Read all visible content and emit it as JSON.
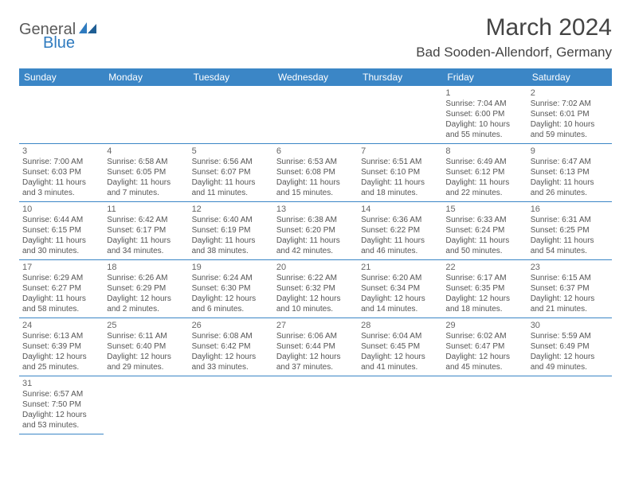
{
  "logo": {
    "general": "General",
    "blue": "Blue"
  },
  "title": "March 2024",
  "location": "Bad Sooden-Allendorf, Germany",
  "colors": {
    "header_bg": "#3b86c6",
    "header_fg": "#ffffff",
    "border": "#3b86c6",
    "logo_blue": "#2f7bbf"
  },
  "weekdays": [
    "Sunday",
    "Monday",
    "Tuesday",
    "Wednesday",
    "Thursday",
    "Friday",
    "Saturday"
  ],
  "weeks": [
    [
      null,
      null,
      null,
      null,
      null,
      {
        "n": "1",
        "sunrise": "Sunrise: 7:04 AM",
        "sunset": "Sunset: 6:00 PM",
        "daylight": "Daylight: 10 hours and 55 minutes."
      },
      {
        "n": "2",
        "sunrise": "Sunrise: 7:02 AM",
        "sunset": "Sunset: 6:01 PM",
        "daylight": "Daylight: 10 hours and 59 minutes."
      }
    ],
    [
      {
        "n": "3",
        "sunrise": "Sunrise: 7:00 AM",
        "sunset": "Sunset: 6:03 PM",
        "daylight": "Daylight: 11 hours and 3 minutes."
      },
      {
        "n": "4",
        "sunrise": "Sunrise: 6:58 AM",
        "sunset": "Sunset: 6:05 PM",
        "daylight": "Daylight: 11 hours and 7 minutes."
      },
      {
        "n": "5",
        "sunrise": "Sunrise: 6:56 AM",
        "sunset": "Sunset: 6:07 PM",
        "daylight": "Daylight: 11 hours and 11 minutes."
      },
      {
        "n": "6",
        "sunrise": "Sunrise: 6:53 AM",
        "sunset": "Sunset: 6:08 PM",
        "daylight": "Daylight: 11 hours and 15 minutes."
      },
      {
        "n": "7",
        "sunrise": "Sunrise: 6:51 AM",
        "sunset": "Sunset: 6:10 PM",
        "daylight": "Daylight: 11 hours and 18 minutes."
      },
      {
        "n": "8",
        "sunrise": "Sunrise: 6:49 AM",
        "sunset": "Sunset: 6:12 PM",
        "daylight": "Daylight: 11 hours and 22 minutes."
      },
      {
        "n": "9",
        "sunrise": "Sunrise: 6:47 AM",
        "sunset": "Sunset: 6:13 PM",
        "daylight": "Daylight: 11 hours and 26 minutes."
      }
    ],
    [
      {
        "n": "10",
        "sunrise": "Sunrise: 6:44 AM",
        "sunset": "Sunset: 6:15 PM",
        "daylight": "Daylight: 11 hours and 30 minutes."
      },
      {
        "n": "11",
        "sunrise": "Sunrise: 6:42 AM",
        "sunset": "Sunset: 6:17 PM",
        "daylight": "Daylight: 11 hours and 34 minutes."
      },
      {
        "n": "12",
        "sunrise": "Sunrise: 6:40 AM",
        "sunset": "Sunset: 6:19 PM",
        "daylight": "Daylight: 11 hours and 38 minutes."
      },
      {
        "n": "13",
        "sunrise": "Sunrise: 6:38 AM",
        "sunset": "Sunset: 6:20 PM",
        "daylight": "Daylight: 11 hours and 42 minutes."
      },
      {
        "n": "14",
        "sunrise": "Sunrise: 6:36 AM",
        "sunset": "Sunset: 6:22 PM",
        "daylight": "Daylight: 11 hours and 46 minutes."
      },
      {
        "n": "15",
        "sunrise": "Sunrise: 6:33 AM",
        "sunset": "Sunset: 6:24 PM",
        "daylight": "Daylight: 11 hours and 50 minutes."
      },
      {
        "n": "16",
        "sunrise": "Sunrise: 6:31 AM",
        "sunset": "Sunset: 6:25 PM",
        "daylight": "Daylight: 11 hours and 54 minutes."
      }
    ],
    [
      {
        "n": "17",
        "sunrise": "Sunrise: 6:29 AM",
        "sunset": "Sunset: 6:27 PM",
        "daylight": "Daylight: 11 hours and 58 minutes."
      },
      {
        "n": "18",
        "sunrise": "Sunrise: 6:26 AM",
        "sunset": "Sunset: 6:29 PM",
        "daylight": "Daylight: 12 hours and 2 minutes."
      },
      {
        "n": "19",
        "sunrise": "Sunrise: 6:24 AM",
        "sunset": "Sunset: 6:30 PM",
        "daylight": "Daylight: 12 hours and 6 minutes."
      },
      {
        "n": "20",
        "sunrise": "Sunrise: 6:22 AM",
        "sunset": "Sunset: 6:32 PM",
        "daylight": "Daylight: 12 hours and 10 minutes."
      },
      {
        "n": "21",
        "sunrise": "Sunrise: 6:20 AM",
        "sunset": "Sunset: 6:34 PM",
        "daylight": "Daylight: 12 hours and 14 minutes."
      },
      {
        "n": "22",
        "sunrise": "Sunrise: 6:17 AM",
        "sunset": "Sunset: 6:35 PM",
        "daylight": "Daylight: 12 hours and 18 minutes."
      },
      {
        "n": "23",
        "sunrise": "Sunrise: 6:15 AM",
        "sunset": "Sunset: 6:37 PM",
        "daylight": "Daylight: 12 hours and 21 minutes."
      }
    ],
    [
      {
        "n": "24",
        "sunrise": "Sunrise: 6:13 AM",
        "sunset": "Sunset: 6:39 PM",
        "daylight": "Daylight: 12 hours and 25 minutes."
      },
      {
        "n": "25",
        "sunrise": "Sunrise: 6:11 AM",
        "sunset": "Sunset: 6:40 PM",
        "daylight": "Daylight: 12 hours and 29 minutes."
      },
      {
        "n": "26",
        "sunrise": "Sunrise: 6:08 AM",
        "sunset": "Sunset: 6:42 PM",
        "daylight": "Daylight: 12 hours and 33 minutes."
      },
      {
        "n": "27",
        "sunrise": "Sunrise: 6:06 AM",
        "sunset": "Sunset: 6:44 PM",
        "daylight": "Daylight: 12 hours and 37 minutes."
      },
      {
        "n": "28",
        "sunrise": "Sunrise: 6:04 AM",
        "sunset": "Sunset: 6:45 PM",
        "daylight": "Daylight: 12 hours and 41 minutes."
      },
      {
        "n": "29",
        "sunrise": "Sunrise: 6:02 AM",
        "sunset": "Sunset: 6:47 PM",
        "daylight": "Daylight: 12 hours and 45 minutes."
      },
      {
        "n": "30",
        "sunrise": "Sunrise: 5:59 AM",
        "sunset": "Sunset: 6:49 PM",
        "daylight": "Daylight: 12 hours and 49 minutes."
      }
    ],
    [
      {
        "n": "31",
        "sunrise": "Sunrise: 6:57 AM",
        "sunset": "Sunset: 7:50 PM",
        "daylight": "Daylight: 12 hours and 53 minutes."
      },
      null,
      null,
      null,
      null,
      null,
      null
    ]
  ]
}
